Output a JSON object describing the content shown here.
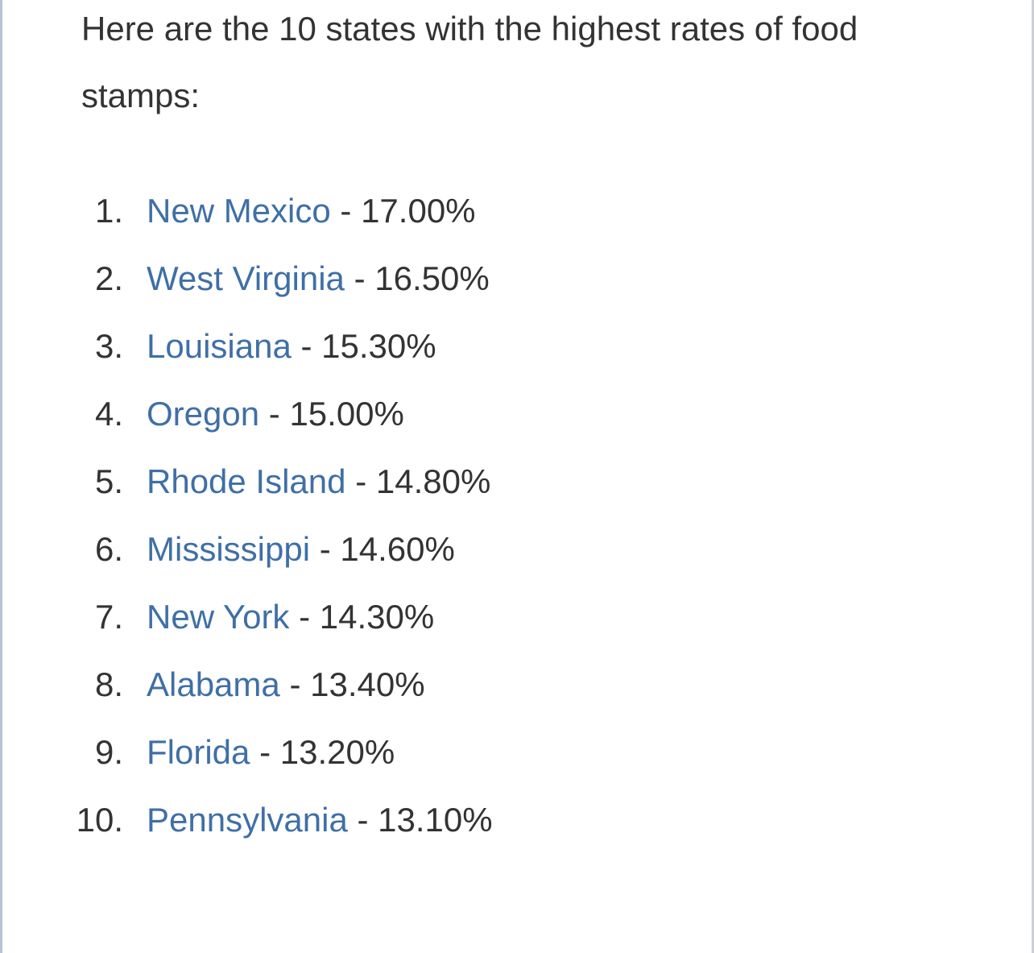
{
  "intro": "Here are the 10 states with the highest rates of food stamps:",
  "list": {
    "separator": "-",
    "items": [
      {
        "marker": "1.",
        "state": "New Mexico",
        "rate": "17.00%"
      },
      {
        "marker": "2.",
        "state": "West Virginia",
        "rate": "16.50%"
      },
      {
        "marker": "3.",
        "state": "Louisiana",
        "rate": "15.30%"
      },
      {
        "marker": "4.",
        "state": "Oregon",
        "rate": "15.00%"
      },
      {
        "marker": "5.",
        "state": "Rhode Island",
        "rate": "14.80%"
      },
      {
        "marker": "6.",
        "state": "Mississippi",
        "rate": "14.60%"
      },
      {
        "marker": "7.",
        "state": "New York",
        "rate": "14.30%"
      },
      {
        "marker": "8.",
        "state": "Alabama",
        "rate": "13.40%"
      },
      {
        "marker": "9.",
        "state": "Florida",
        "rate": "13.20%"
      },
      {
        "marker": "10.",
        "state": "Pennsylvania",
        "rate": "13.10%"
      }
    ]
  }
}
